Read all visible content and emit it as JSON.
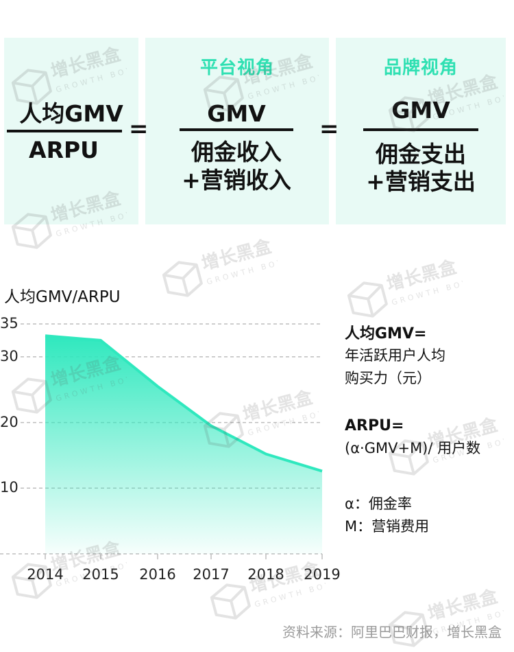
{
  "formula": {
    "left": {
      "numerator": "人均GMV",
      "denominator": "ARPU"
    },
    "equals": "=",
    "platform": {
      "title": "平台视角",
      "numerator": "GMV",
      "denominator_line1": "佣金收入",
      "denominator_line2": "+营销收入"
    },
    "brand": {
      "title": "品牌视角",
      "numerator": "GMV",
      "denominator_line1": "佣金支出",
      "denominator_line2": "+营销支出"
    }
  },
  "chart_data": {
    "type": "area",
    "title": "",
    "ylabel": "人均GMV/ARPU",
    "xlabel": "",
    "x": [
      "2014",
      "2015",
      "2016",
      "2017",
      "2018",
      "2019"
    ],
    "y": [
      33.2,
      32.5,
      25.5,
      19.5,
      15.2,
      12.6
    ],
    "yticks": [
      "35",
      "30",
      "20",
      "10"
    ],
    "ytick_values": [
      35,
      30,
      20,
      10
    ],
    "ylim": [
      0,
      35
    ],
    "grid": true,
    "color": "#2fe8be"
  },
  "legend_notes": {
    "gmv_title": "人均GMV=",
    "gmv_line1": "年活跃用户人均",
    "gmv_line2": "购买力（元）",
    "arpu_title": "ARPU=",
    "arpu_line1": "(α·GMV+M)/ 用户数",
    "alpha_line": "α：佣金率",
    "m_line": "M：营销费用"
  },
  "source": "资料来源：阿里巴巴财报，增长黑盒",
  "watermark": {
    "cn": "增长黑盒",
    "en": "GROWTH BOX"
  }
}
